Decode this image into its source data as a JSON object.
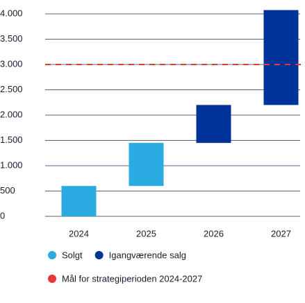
{
  "chart_data": {
    "type": "waterfall",
    "categories": [
      "2024",
      "2025",
      "2026",
      "2027"
    ],
    "series": [
      {
        "name": "Solgt",
        "color": "#29abe2",
        "values": [
          600,
          850,
          null,
          null
        ]
      },
      {
        "name": "Igangværende salg",
        "color": "#003399",
        "values": [
          null,
          null,
          750,
          1875
        ]
      }
    ],
    "target": {
      "name": "Mål for strategiperioden 2024-2027",
      "value": 3000,
      "color": "#e53935"
    },
    "ylim": [
      0,
      4000
    ],
    "yticks": [
      0,
      500,
      {
        "value": 1000,
        "label": "1.000"
      },
      {
        "value": 1500,
        "label": "1.500"
      },
      {
        "value": 2000,
        "label": "2.000"
      },
      {
        "value": 2500,
        "label": "2.500"
      },
      {
        "value": 3000,
        "label": "3.000"
      },
      {
        "value": 3500,
        "label": "3.500"
      },
      {
        "value": 4000,
        "label": "4.000"
      }
    ],
    "grid": true
  }
}
